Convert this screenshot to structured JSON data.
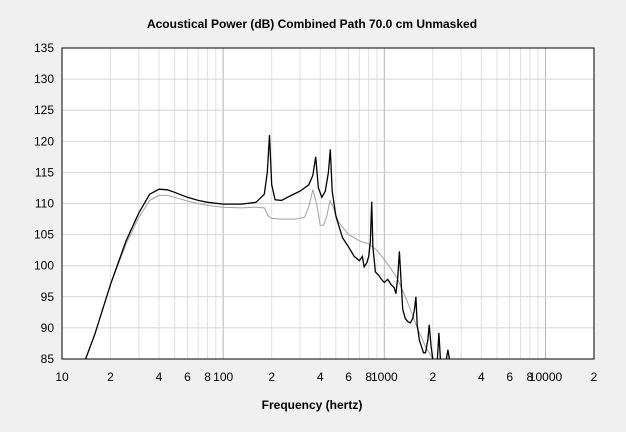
{
  "chart_data": {
    "type": "line",
    "title": "Acoustical Power (dB)   Combined   Path 70.0 cm   Unmasked",
    "xlabel": "Frequency (hertz)",
    "ylabel": "",
    "x_scale": "log",
    "xlim": [
      10,
      20000
    ],
    "ylim": [
      85,
      135
    ],
    "grid": true,
    "y_ticks": [
      "135",
      "130",
      "125",
      "120",
      "115",
      "110",
      "105",
      "100",
      "95",
      "90",
      "85"
    ],
    "y_tick_values": [
      135,
      130,
      125,
      120,
      115,
      110,
      105,
      100,
      95,
      90,
      85
    ],
    "x_ticks": [
      {
        "value": 10,
        "label": "10"
      },
      {
        "value": 20,
        "label": "2"
      },
      {
        "value": 40,
        "label": "4"
      },
      {
        "value": 60,
        "label": "6"
      },
      {
        "value": 80,
        "label": "8"
      },
      {
        "value": 100,
        "label": "100"
      },
      {
        "value": 200,
        "label": "2"
      },
      {
        "value": 400,
        "label": "4"
      },
      {
        "value": 600,
        "label": "6"
      },
      {
        "value": 800,
        "label": "8"
      },
      {
        "value": 1000,
        "label": "1000"
      },
      {
        "value": 2000,
        "label": "2"
      },
      {
        "value": 4000,
        "label": "4"
      },
      {
        "value": 6000,
        "label": "6"
      },
      {
        "value": 8000,
        "label": "8"
      },
      {
        "value": 10000,
        "label": "10000"
      },
      {
        "value": 20000,
        "label": "2"
      }
    ],
    "series": [
      {
        "color": "#000000",
        "points": [
          [
            14,
            85
          ],
          [
            16,
            89
          ],
          [
            20,
            97
          ],
          [
            25,
            104
          ],
          [
            30,
            108.5
          ],
          [
            35,
            111.5
          ],
          [
            40,
            112.3
          ],
          [
            45,
            112.2
          ],
          [
            50,
            111.8
          ],
          [
            60,
            111
          ],
          [
            70,
            110.5
          ],
          [
            80,
            110.2
          ],
          [
            100,
            109.9
          ],
          [
            130,
            109.9
          ],
          [
            160,
            110.2
          ],
          [
            180,
            111.5
          ],
          [
            188,
            115
          ],
          [
            194,
            121
          ],
          [
            200,
            113
          ],
          [
            210,
            110.6
          ],
          [
            230,
            110.5
          ],
          [
            260,
            111.2
          ],
          [
            300,
            112
          ],
          [
            340,
            113
          ],
          [
            360,
            114.5
          ],
          [
            375,
            117.5
          ],
          [
            390,
            112.5
          ],
          [
            410,
            111
          ],
          [
            430,
            112
          ],
          [
            450,
            115
          ],
          [
            462,
            118.7
          ],
          [
            475,
            112
          ],
          [
            500,
            108
          ],
          [
            550,
            104.5
          ],
          [
            600,
            103
          ],
          [
            650,
            101.5
          ],
          [
            700,
            100.8
          ],
          [
            730,
            101.5
          ],
          [
            750,
            99.8
          ],
          [
            780,
            100.5
          ],
          [
            800,
            101.5
          ],
          [
            820,
            104
          ],
          [
            835,
            110.3
          ],
          [
            850,
            103
          ],
          [
            880,
            99
          ],
          [
            920,
            98.5
          ],
          [
            960,
            97.8
          ],
          [
            1000,
            97.3
          ],
          [
            1050,
            97.8
          ],
          [
            1100,
            97
          ],
          [
            1150,
            96.5
          ],
          [
            1180,
            95.5
          ],
          [
            1210,
            98
          ],
          [
            1240,
            102.3
          ],
          [
            1270,
            97.5
          ],
          [
            1300,
            93
          ],
          [
            1350,
            91.5
          ],
          [
            1400,
            91
          ],
          [
            1450,
            90.8
          ],
          [
            1500,
            91.5
          ],
          [
            1540,
            93
          ],
          [
            1570,
            95
          ],
          [
            1600,
            90.5
          ],
          [
            1650,
            88
          ],
          [
            1700,
            87
          ],
          [
            1750,
            86
          ],
          [
            1800,
            86
          ],
          [
            1860,
            88
          ],
          [
            1900,
            90.5
          ],
          [
            1950,
            87
          ],
          [
            2000,
            85
          ]
        ]
      },
      {
        "color": "#a0a0a0",
        "points": [
          [
            14,
            85
          ],
          [
            16,
            89
          ],
          [
            20,
            97
          ],
          [
            25,
            103.5
          ],
          [
            30,
            107.8
          ],
          [
            35,
            110.5
          ],
          [
            40,
            111.3
          ],
          [
            45,
            111.3
          ],
          [
            50,
            111
          ],
          [
            60,
            110.4
          ],
          [
            70,
            110
          ],
          [
            80,
            109.7
          ],
          [
            100,
            109.4
          ],
          [
            130,
            109.3
          ],
          [
            160,
            109.4
          ],
          [
            180,
            109.3
          ],
          [
            190,
            108
          ],
          [
            200,
            107.6
          ],
          [
            230,
            107.5
          ],
          [
            280,
            107.5
          ],
          [
            320,
            107.8
          ],
          [
            340,
            109.5
          ],
          [
            360,
            112.2
          ],
          [
            380,
            110
          ],
          [
            400,
            106.5
          ],
          [
            420,
            106.5
          ],
          [
            440,
            108
          ],
          [
            460,
            110.5
          ],
          [
            480,
            109.5
          ],
          [
            520,
            107
          ],
          [
            600,
            105
          ],
          [
            700,
            104
          ],
          [
            800,
            103.5
          ],
          [
            900,
            102.5
          ],
          [
            1000,
            101
          ],
          [
            1100,
            99.5
          ],
          [
            1200,
            98
          ],
          [
            1300,
            96
          ],
          [
            1400,
            94
          ],
          [
            1500,
            92
          ],
          [
            1600,
            90
          ],
          [
            1700,
            88.5
          ],
          [
            1800,
            87
          ],
          [
            1900,
            86
          ],
          [
            2000,
            85
          ]
        ]
      }
    ],
    "extra_spikes": [
      {
        "x": 2180,
        "top": 89.2
      },
      {
        "x": 2480,
        "top": 86.5
      }
    ]
  }
}
